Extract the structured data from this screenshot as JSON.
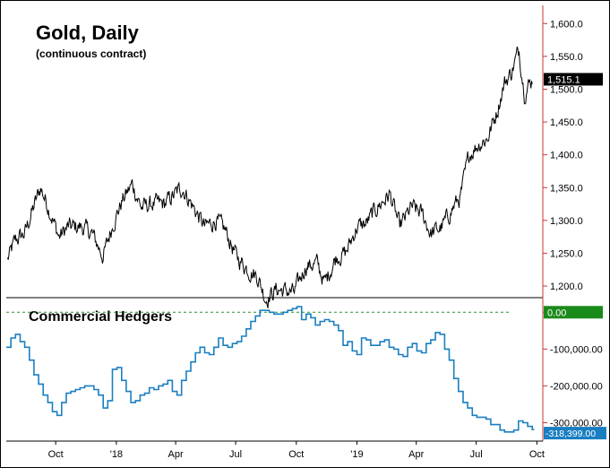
{
  "chart_data": [
    {
      "type": "line",
      "title": "Gold, Daily",
      "subtitle": "(continuous contract)",
      "ylim": [
        1185,
        1625
      ],
      "y_ticks": [
        1200,
        1250,
        1300,
        1350,
        1400,
        1450,
        1500,
        1550,
        1600
      ],
      "y_tick_labels": [
        "1,200.0",
        "1,250.0",
        "1,300.0",
        "1,350.0",
        "1,400.0",
        "1,450.0",
        "1,500.0",
        "1,550.0",
        "1,600.0"
      ],
      "last_value": 1515.1,
      "last_value_label": "1,515.1",
      "series": [
        {
          "color": "#000000",
          "x": [
            "2017-07-20",
            "2017-08-01",
            "2017-08-15",
            "2017-09-01",
            "2017-09-08",
            "2017-09-20",
            "2017-10-06",
            "2017-10-20",
            "2017-11-10",
            "2017-11-25",
            "2017-12-12",
            "2017-12-27",
            "2018-01-10",
            "2018-01-25",
            "2018-02-08",
            "2018-02-25",
            "2018-03-15",
            "2018-04-11",
            "2018-04-25",
            "2018-05-15",
            "2018-06-01",
            "2018-06-15",
            "2018-07-02",
            "2018-07-20",
            "2018-08-03",
            "2018-08-16",
            "2018-09-01",
            "2018-09-28",
            "2018-10-15",
            "2018-11-01",
            "2018-11-13",
            "2018-12-01",
            "2018-12-15",
            "2019-01-01",
            "2019-01-15",
            "2019-02-01",
            "2019-02-20",
            "2019-03-07",
            "2019-03-25",
            "2019-04-10",
            "2019-04-23",
            "2019-05-10",
            "2019-05-30",
            "2019-06-07",
            "2019-06-20",
            "2019-07-03",
            "2019-07-18",
            "2019-08-01",
            "2019-08-13",
            "2019-08-23",
            "2019-09-04",
            "2019-09-12",
            "2019-09-24"
          ],
          "y": [
            1240,
            1270,
            1280,
            1330,
            1350,
            1320,
            1275,
            1290,
            1290,
            1280,
            1245,
            1295,
            1330,
            1355,
            1320,
            1325,
            1325,
            1350,
            1325,
            1290,
            1300,
            1285,
            1245,
            1225,
            1215,
            1180,
            1195,
            1190,
            1230,
            1235,
            1205,
            1245,
            1250,
            1290,
            1295,
            1320,
            1340,
            1290,
            1320,
            1310,
            1280,
            1290,
            1325,
            1335,
            1400,
            1415,
            1425,
            1465,
            1510,
            1525,
            1560,
            1495,
            1515.1
          ]
        }
      ]
    },
    {
      "type": "line",
      "title": "Commercial Hedgers",
      "ylim": [
        -345000,
        25000
      ],
      "y_ticks": [
        -300000,
        -200000,
        -100000,
        0
      ],
      "y_tick_labels": [
        "-300,000.00",
        "-200,000.00",
        "-100,000.00",
        "0.00"
      ],
      "zero_label": "0.00",
      "last_value": -318399,
      "last_value_label": "-318,399.00",
      "x_tick_labels": [
        "Oct",
        "'18",
        "Apr",
        "Jul",
        "Oct",
        "'19",
        "Apr",
        "Jul",
        "Oct"
      ],
      "series": [
        {
          "color": "#1a7fc1",
          "x": [
            "2017-07-18",
            "2017-07-25",
            "2017-08-01",
            "2017-08-08",
            "2017-08-15",
            "2017-08-22",
            "2017-08-29",
            "2017-09-05",
            "2017-09-12",
            "2017-09-19",
            "2017-09-26",
            "2017-10-03",
            "2017-10-10",
            "2017-10-17",
            "2017-10-24",
            "2017-10-31",
            "2017-11-07",
            "2017-11-14",
            "2017-11-21",
            "2017-11-28",
            "2017-12-05",
            "2017-12-12",
            "2017-12-19",
            "2017-12-26",
            "2018-01-02",
            "2018-01-09",
            "2018-01-16",
            "2018-01-23",
            "2018-01-30",
            "2018-02-06",
            "2018-02-13",
            "2018-02-20",
            "2018-02-27",
            "2018-03-06",
            "2018-03-13",
            "2018-03-20",
            "2018-03-27",
            "2018-04-03",
            "2018-04-10",
            "2018-04-17",
            "2018-04-24",
            "2018-05-01",
            "2018-05-08",
            "2018-05-15",
            "2018-05-22",
            "2018-05-29",
            "2018-06-05",
            "2018-06-12",
            "2018-06-19",
            "2018-06-26",
            "2018-07-03",
            "2018-07-10",
            "2018-07-17",
            "2018-07-24",
            "2018-07-31",
            "2018-08-07",
            "2018-08-14",
            "2018-08-21",
            "2018-08-28",
            "2018-09-04",
            "2018-09-11",
            "2018-09-18",
            "2018-09-25",
            "2018-10-02",
            "2018-10-09",
            "2018-10-16",
            "2018-10-23",
            "2018-10-30",
            "2018-11-06",
            "2018-11-13",
            "2018-11-20",
            "2018-11-27",
            "2018-12-04",
            "2018-12-11",
            "2018-12-18",
            "2018-12-25",
            "2019-01-01",
            "2019-01-08",
            "2019-01-15",
            "2019-01-22",
            "2019-01-29",
            "2019-02-05",
            "2019-02-12",
            "2019-02-19",
            "2019-02-26",
            "2019-03-05",
            "2019-03-12",
            "2019-03-19",
            "2019-03-26",
            "2019-04-02",
            "2019-04-09",
            "2019-04-16",
            "2019-04-23",
            "2019-04-30",
            "2019-05-07",
            "2019-05-14",
            "2019-05-21",
            "2019-05-28",
            "2019-06-04",
            "2019-06-11",
            "2019-06-18",
            "2019-06-25",
            "2019-07-02",
            "2019-07-09",
            "2019-07-16",
            "2019-07-23",
            "2019-07-30",
            "2019-08-06",
            "2019-08-13",
            "2019-08-20",
            "2019-08-27",
            "2019-09-03",
            "2019-09-10",
            "2019-09-17",
            "2019-09-24"
          ],
          "y": [
            -95000,
            -70000,
            -60000,
            -80000,
            -95000,
            -130000,
            -170000,
            -195000,
            -225000,
            -245000,
            -270000,
            -280000,
            -245000,
            -220000,
            -215000,
            -210000,
            -205000,
            -200000,
            -200000,
            -210000,
            -225000,
            -260000,
            -240000,
            -155000,
            -150000,
            -185000,
            -215000,
            -245000,
            -240000,
            -225000,
            -220000,
            -205000,
            -210000,
            -200000,
            -195000,
            -185000,
            -215000,
            -225000,
            -185000,
            -160000,
            -135000,
            -110000,
            -95000,
            -110000,
            -115000,
            -95000,
            -70000,
            -90000,
            -95000,
            -85000,
            -80000,
            -65000,
            -45000,
            -25000,
            -10000,
            5000,
            5000,
            0,
            -5000,
            -5000,
            0,
            5000,
            10000,
            15000,
            -20000,
            -5000,
            -15000,
            -35000,
            -25000,
            -20000,
            -25000,
            -35000,
            -50000,
            -90000,
            -80000,
            -105000,
            -115000,
            -70000,
            -75000,
            -90000,
            -90000,
            -80000,
            -75000,
            -95000,
            -100000,
            -115000,
            -120000,
            -95000,
            -85000,
            -105000,
            -110000,
            -85000,
            -75000,
            -55000,
            -60000,
            -100000,
            -130000,
            -180000,
            -215000,
            -245000,
            -260000,
            -280000,
            -285000,
            -285000,
            -290000,
            -305000,
            -305000,
            -320000,
            -325000,
            -325000,
            -320000,
            -295000,
            -300000,
            -310000,
            -318399
          ]
        }
      ]
    }
  ]
}
